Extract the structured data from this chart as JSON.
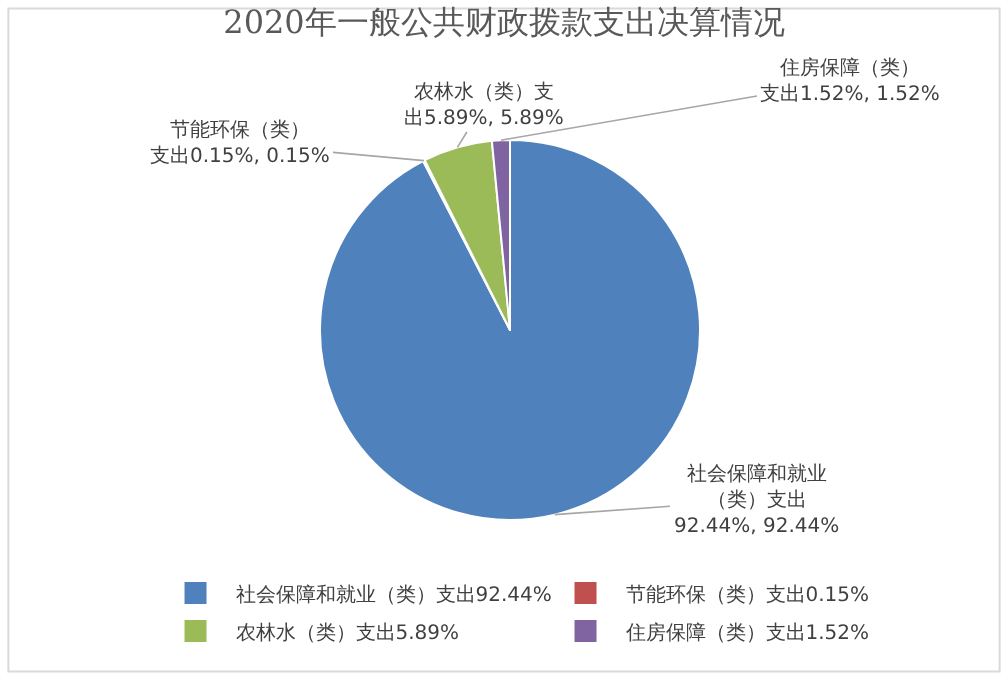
{
  "chart_data": {
    "type": "pie",
    "title": "2020年一般公共财政拨款支出决算情况",
    "categories": [
      "社会保障和就业（类）支出92.44%",
      "节能环保（类）支出0.15%",
      "农林水（类）支出5.89%",
      "住房保障（类）支出1.52%"
    ],
    "values": [
      92.44,
      0.15,
      5.89,
      1.52
    ],
    "colors": [
      "#4f81bd",
      "#c0504d",
      "#9bbb59",
      "#8064a2"
    ],
    "value_labels": [
      "社会保障和就业（类）支出92.44%, 92.44%",
      "节能环保（类）支出0.15%, 0.15%",
      "农林水（类）支出5.89%, 5.89%",
      "住房保障（类）支出1.52%, 1.52%"
    ],
    "legend": "bottom"
  }
}
